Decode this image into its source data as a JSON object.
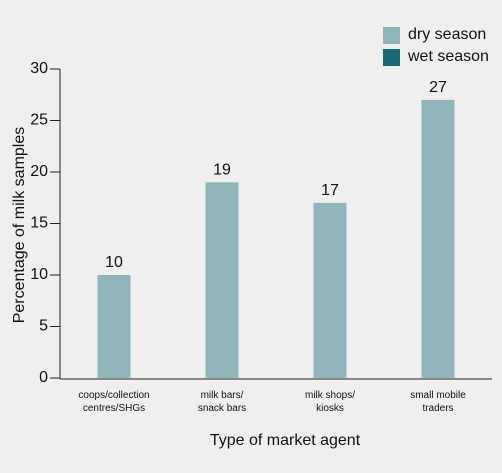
{
  "chart_data": {
    "type": "bar",
    "x_label": "Type of market agent",
    "y_label": "Percentage of milk samples",
    "categories": [
      "coops/collection\ncentres/SHGs",
      "milk bars/\nsnack bars",
      "milk shops/\nkiosks",
      "small mobile\ntraders"
    ],
    "series": [
      {
        "name": "dry season",
        "color": "#8fb5bb",
        "values": [
          10,
          19,
          17,
          27
        ]
      },
      {
        "name": "wet season",
        "color": "#1a6b73",
        "values": [
          null,
          null,
          null,
          null
        ]
      }
    ],
    "ylim": [
      0,
      30
    ],
    "yticks": [
      0,
      5,
      10,
      15,
      20,
      25,
      30
    ],
    "grid": false,
    "legend": "top-right"
  }
}
